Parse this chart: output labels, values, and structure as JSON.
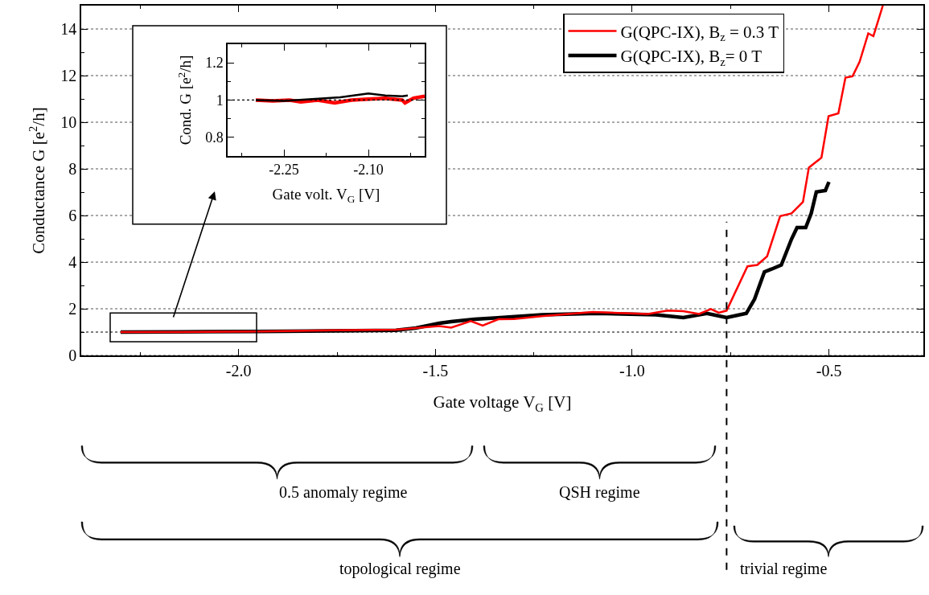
{
  "chart_data": [
    {
      "type": "line",
      "xlabel": "Gate voltage V$_{G}$ [V]",
      "ylabel": "Conductance G [e$^{2}$/h]",
      "xlim": [
        -2.4,
        -0.26
      ],
      "ylim": [
        0,
        15
      ],
      "xticks": [
        {
          "value": -2.25,
          "label": null
        },
        {
          "value": -2.0,
          "label": "-2.0"
        },
        {
          "value": -1.75,
          "label": null
        },
        {
          "value": -1.5,
          "label": "-1.5"
        },
        {
          "value": -1.25,
          "label": null
        },
        {
          "value": -1.0,
          "label": "-1.0"
        },
        {
          "value": -0.75,
          "label": null
        },
        {
          "value": -0.5,
          "label": "-0.5"
        }
      ],
      "yticks": [
        0,
        {
          "value": 1,
          "label": null
        },
        2,
        {
          "value": 3,
          "label": null
        },
        4,
        {
          "value": 5,
          "label": null
        },
        6,
        {
          "value": 7,
          "label": null
        },
        8,
        {
          "value": 9,
          "label": null
        },
        10,
        {
          "value": 11,
          "label": null
        },
        12,
        {
          "value": 13,
          "label": null
        },
        14
      ],
      "grid": "y",
      "legend": "top right",
      "ref_lines": [
        {
          "axis": "y",
          "value": 1,
          "line_style": "dotted"
        },
        {
          "axis": "x",
          "value": -0.76,
          "line_style": "dashed"
        }
      ],
      "annotations": [
        "0.5 anomaly regime",
        "QSH regime",
        "topological regime",
        "trivial regime"
      ],
      "series": [
        {
          "name": "G(QPC-IX), B$_{z}$ = 0.3 T",
          "color": "#ff0000",
          "x": [
            -2.3,
            -2.15,
            -1.95,
            -1.76,
            -1.6,
            -1.55,
            -1.49,
            -1.46,
            -1.41,
            -1.38,
            -1.34,
            -1.3,
            -1.23,
            -1.1,
            -0.96,
            -0.91,
            -0.87,
            -0.83,
            -0.8,
            -0.78,
            -0.76,
            -0.707,
            -0.682,
            -0.657,
            -0.624,
            -0.595,
            -0.566,
            -0.551,
            -0.519,
            -0.501,
            -0.476,
            -0.458,
            -0.44,
            -0.422,
            -0.4,
            -0.387,
            -0.363
          ],
          "values": [
            1.0,
            1.0,
            1.03,
            1.08,
            1.1,
            1.17,
            1.26,
            1.19,
            1.47,
            1.28,
            1.55,
            1.56,
            1.68,
            1.86,
            1.78,
            1.92,
            1.9,
            1.78,
            1.99,
            1.83,
            1.92,
            3.82,
            3.88,
            4.25,
            5.97,
            6.09,
            6.58,
            8.05,
            8.48,
            10.26,
            10.38,
            11.91,
            11.97,
            12.59,
            13.81,
            13.69,
            15.0
          ]
        },
        {
          "name": "G(QPC-IX), B$_{z}$= 0 T",
          "color": "#000000",
          "x": [
            -2.3,
            -2.15,
            -1.95,
            -1.76,
            -1.6,
            -1.55,
            -1.49,
            -1.46,
            -1.4,
            -1.35,
            -1.23,
            -1.09,
            -0.94,
            -0.87,
            -0.81,
            -0.76,
            -0.71,
            -0.689,
            -0.664,
            -0.646,
            -0.621,
            -0.595,
            -0.581,
            -0.559,
            -0.545,
            -0.532,
            -0.509,
            -0.5
          ],
          "values": [
            1.0,
            1.01,
            1.03,
            1.05,
            1.08,
            1.17,
            1.38,
            1.45,
            1.55,
            1.6,
            1.74,
            1.8,
            1.74,
            1.62,
            1.8,
            1.62,
            1.8,
            2.41,
            3.58,
            3.7,
            3.88,
            4.99,
            5.48,
            5.48,
            6.09,
            7.01,
            7.07,
            7.44
          ]
        }
      ]
    },
    {
      "type": "line",
      "xlabel": "Gate volt. V$_{G}$ [V]",
      "ylabel": "Cond. G [e$^{2}$/h]",
      "xlim": [
        -2.35,
        -2.0
      ],
      "ylim": [
        0.7,
        1.3
      ],
      "xticks": [
        {
          "value": -2.325,
          "label": null
        },
        {
          "value": -2.25,
          "label": "-2.25"
        },
        {
          "value": -2.175,
          "label": null
        },
        {
          "value": -2.1,
          "label": "-2.10"
        },
        {
          "value": -2.025,
          "label": null
        }
      ],
      "yticks": [
        0.8,
        {
          "value": 0.9,
          "label": null
        },
        1,
        {
          "value": 1.1,
          "label": null
        },
        1.2
      ],
      "ref_lines": [
        {
          "axis": "y",
          "value": 1,
          "line_style": "dotted"
        }
      ],
      "series": [
        {
          "color": "#000000",
          "x": [
            -2.3,
            -2.25,
            -2.2,
            -2.15,
            -2.1,
            -2.07,
            -2.04,
            -2.03
          ],
          "values": [
            1.0,
            0.995,
            1.005,
            1.015,
            1.035,
            1.025,
            1.02,
            1.025
          ]
        },
        {
          "color": "#ff0000",
          "x": [
            -2.3,
            -2.27,
            -2.24,
            -2.22,
            -2.19,
            -2.16,
            -2.13,
            -2.1,
            -2.07,
            -2.04,
            -2.035,
            -2.02,
            -2.0
          ],
          "values": [
            1.0,
            0.995,
            1.0,
            0.99,
            1.0,
            0.985,
            1.0,
            1.005,
            1.01,
            1.0,
            0.985,
            1.01,
            1.02
          ]
        }
      ]
    }
  ]
}
